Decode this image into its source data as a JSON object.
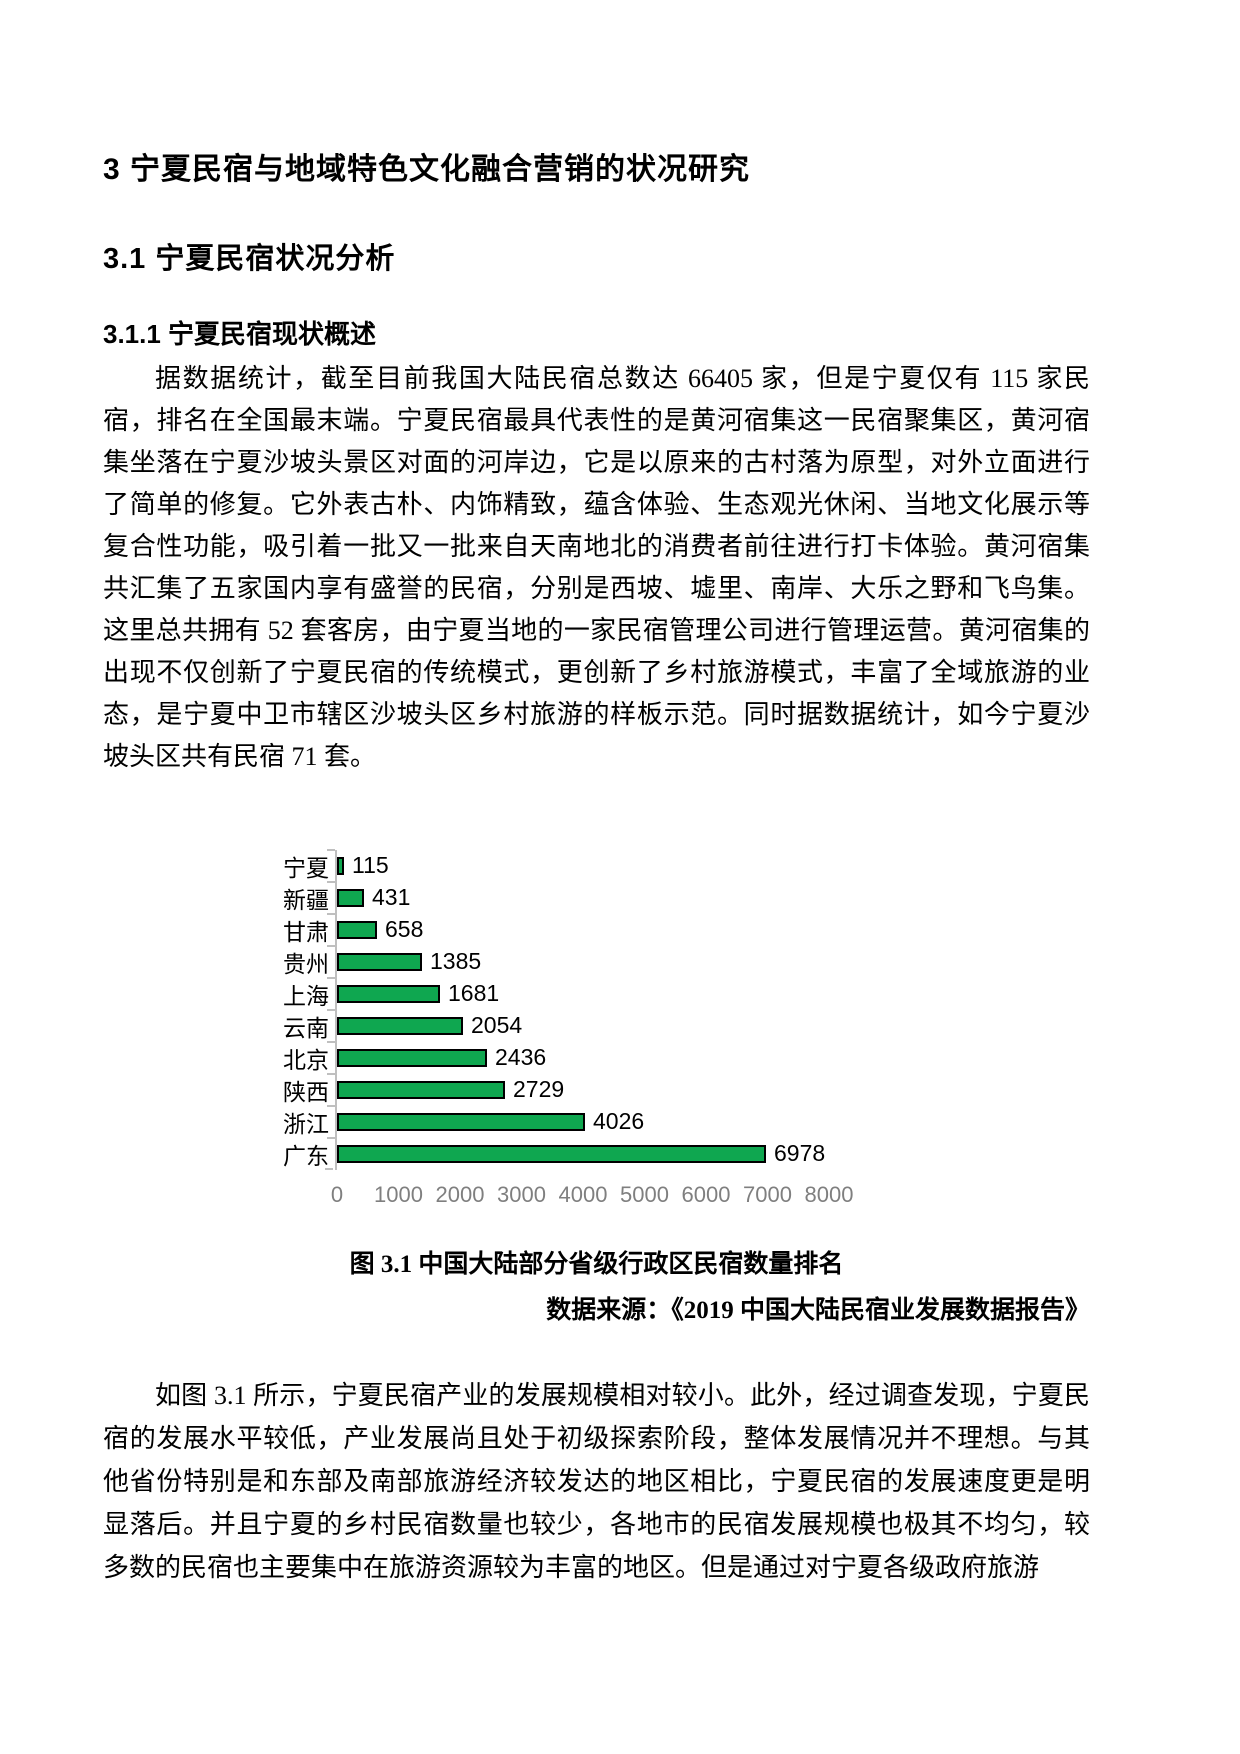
{
  "document": {
    "section_heading": "3 宁夏民宿与地域特色文化融合营销的状况研究",
    "subsection_heading": "3.1 宁夏民宿状况分析",
    "subsubsection_heading": "3.1.1 宁夏民宿现状概述",
    "paragraph_1": "据数据统计，截至目前我国大陆民宿总数达 66405 家，但是宁夏仅有 115 家民宿，排名在全国最末端。宁夏民宿最具代表性的是黄河宿集这一民宿聚集区，黄河宿集坐落在宁夏沙坡头景区对面的河岸边，它是以原来的古村落为原型，对外立面进行了简单的修复。它外表古朴、内饰精致，蕴含体验、生态观光休闲、当地文化展示等复合性功能，吸引着一批又一批来自天南地北的消费者前往进行打卡体验。黄河宿集共汇集了五家国内享有盛誉的民宿，分别是西坡、墟里、南岸、大乐之野和飞鸟集。这里总共拥有 52 套客房，由宁夏当地的一家民宿管理公司进行管理运营。黄河宿集的出现不仅创新了宁夏民宿的传统模式，更创新了乡村旅游模式，丰富了全域旅游的业态，是宁夏中卫市辖区沙坡头区乡村旅游的样板示范。同时据数据统计，如今宁夏沙坡头区共有民宿 71 套。",
    "figure_caption": "图 3.1 中国大陆部分省级行政区民宿数量排名",
    "figure_source": "数据来源：《2019 中国大陆民宿业发展数据报告》",
    "paragraph_2": "如图 3.1 所示，宁夏民宿产业的发展规模相对较小。此外，经过调查发现，宁夏民宿的发展水平较低，产业发展尚且处于初级探索阶段，整体发展情况并不理想。与其他省份特别是和东部及南部旅游经济较发达的地区相比，宁夏民宿的发展速度更是明显落后。并且宁夏的乡村民宿数量也较少，各地市的民宿发展规模也极其不均匀，较多数的民宿也主要集中在旅游资源较为丰富的地区。但是通过对宁夏各级政府旅游"
  },
  "chart_data": {
    "type": "bar",
    "orientation": "horizontal",
    "title": "图 3.1 中国大陆部分省级行政区民宿数量排名",
    "categories": [
      "宁夏",
      "新疆",
      "甘肃",
      "贵州",
      "上海",
      "云南",
      "北京",
      "陕西",
      "浙江",
      "广东"
    ],
    "values": [
      115,
      431,
      658,
      1385,
      1681,
      2054,
      2436,
      2729,
      4026,
      6978
    ],
    "x_ticks": [
      0,
      1000,
      2000,
      3000,
      4000,
      5000,
      6000,
      7000,
      8000
    ],
    "xlim": [
      0,
      8000
    ],
    "grid": false,
    "legend": false,
    "data_labels": true,
    "bar_color": "#0FA750",
    "bar_border_color": "#000000",
    "axis_line_color": "#BFBFBF",
    "tick_label_color": "#7F7F7F"
  }
}
